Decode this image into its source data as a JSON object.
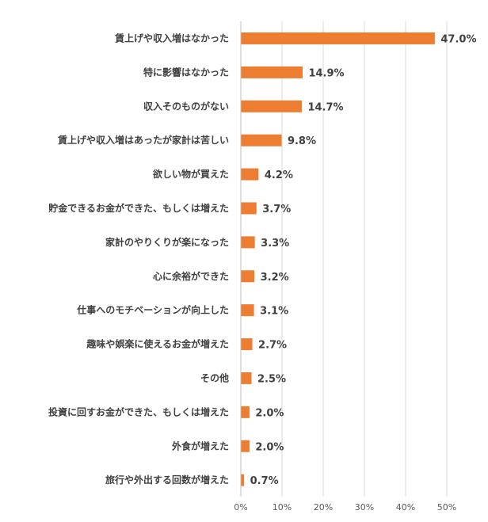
{
  "chart_data": {
    "type": "bar",
    "orientation": "horizontal",
    "title": "",
    "xlabel": "",
    "ylabel": "",
    "categories": [
      "賃上げや収入増はなかった",
      "特に影響はなかった",
      "収入そのものがない",
      "賃上げや収入増はあったが家計は苦しい",
      "欲しい物が買えた",
      "貯金できるお金ができた、もしくは増えた",
      "家計のやりくりが楽になった",
      "心に余裕ができた",
      "仕事へのモチベーションが向上した",
      "趣味や娯楽に使えるお金が増えた",
      "その他",
      "投資に回すお金ができた、もしくは増えた",
      "外食が増えた",
      "旅行や外出する回数が増えた"
    ],
    "values": [
      47.0,
      14.9,
      14.7,
      9.8,
      4.2,
      3.7,
      3.3,
      3.2,
      3.1,
      2.7,
      2.5,
      2.0,
      2.0,
      0.7
    ],
    "data_labels": [
      "47.0%",
      "14.9%",
      "14.7%",
      "9.8%",
      "4.2%",
      "3.7%",
      "3.3%",
      "3.2%",
      "3.1%",
      "2.7%",
      "2.5%",
      "2.0%",
      "2.0%",
      "0.7%"
    ],
    "xlim": [
      0,
      50
    ],
    "x_ticks": [
      0,
      10,
      20,
      30,
      40,
      50
    ],
    "x_tick_labels": [
      "0%",
      "10%",
      "20%",
      "30%",
      "40%",
      "50%"
    ],
    "grid": true,
    "legend": "none",
    "bar_color": "#ed7d31"
  }
}
